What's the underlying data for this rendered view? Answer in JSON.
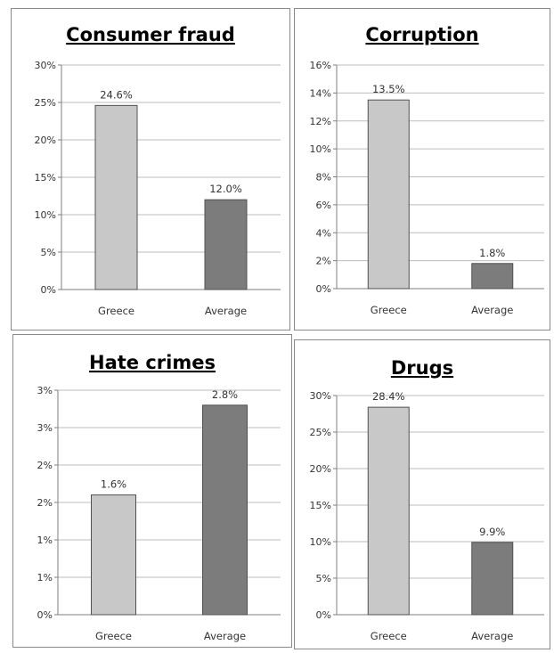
{
  "colors": {
    "greece_bar": "#c8c8c8",
    "average_bar": "#7c7c7c",
    "gridline": "#bdbdbd"
  },
  "chart_data": [
    {
      "type": "bar",
      "title": "Consumer fraud",
      "categories": [
        "Greece",
        "Average"
      ],
      "values": [
        24.6,
        12.0
      ],
      "data_labels": [
        "24.6%",
        "12.0%"
      ],
      "ylim": [
        0,
        30
      ],
      "yticks": [
        0,
        5,
        10,
        15,
        20,
        25,
        30
      ],
      "ytick_labels": [
        "0%",
        "5%",
        "10%",
        "15%",
        "20%",
        "25%",
        "30%"
      ],
      "bar_colors": [
        "#c8c8c8",
        "#7c7c7c"
      ],
      "grid": true,
      "legend": "none"
    },
    {
      "type": "bar",
      "title": "Corruption",
      "categories": [
        "Greece",
        "Average"
      ],
      "values": [
        13.5,
        1.8
      ],
      "data_labels": [
        "13.5%",
        "1.8%"
      ],
      "ylim": [
        0,
        16
      ],
      "yticks": [
        0,
        2,
        4,
        6,
        8,
        10,
        12,
        14,
        16
      ],
      "ytick_labels": [
        "0%",
        "2%",
        "4%",
        "6%",
        "8%",
        "10%",
        "12%",
        "14%",
        "16%"
      ],
      "bar_colors": [
        "#c8c8c8",
        "#7c7c7c"
      ],
      "grid": true,
      "legend": "none"
    },
    {
      "type": "bar",
      "title": "Hate crimes",
      "categories": [
        "Greece",
        "Average"
      ],
      "values": [
        1.6,
        2.8
      ],
      "data_labels": [
        "1.6%",
        "2.8%"
      ],
      "ylim": [
        0,
        3
      ],
      "yticks": [
        0,
        0.5,
        1,
        1.5,
        2,
        2.5,
        3
      ],
      "ytick_labels": [
        "0%",
        "1%",
        "1%",
        "2%",
        "2%",
        "3%",
        "3%"
      ],
      "bar_colors": [
        "#c8c8c8",
        "#7c7c7c"
      ],
      "grid": true,
      "legend": "none"
    },
    {
      "type": "bar",
      "title": "Drugs",
      "categories": [
        "Greece",
        "Average"
      ],
      "values": [
        28.4,
        9.9
      ],
      "data_labels": [
        "28.4%",
        "9.9%"
      ],
      "ylim": [
        0,
        30
      ],
      "yticks": [
        0,
        5,
        10,
        15,
        20,
        25,
        30
      ],
      "ytick_labels": [
        "0%",
        "5%",
        "10%",
        "15%",
        "20%",
        "25%",
        "30%"
      ],
      "bar_colors": [
        "#c8c8c8",
        "#7c7c7c"
      ],
      "grid": true,
      "legend": "none"
    }
  ]
}
